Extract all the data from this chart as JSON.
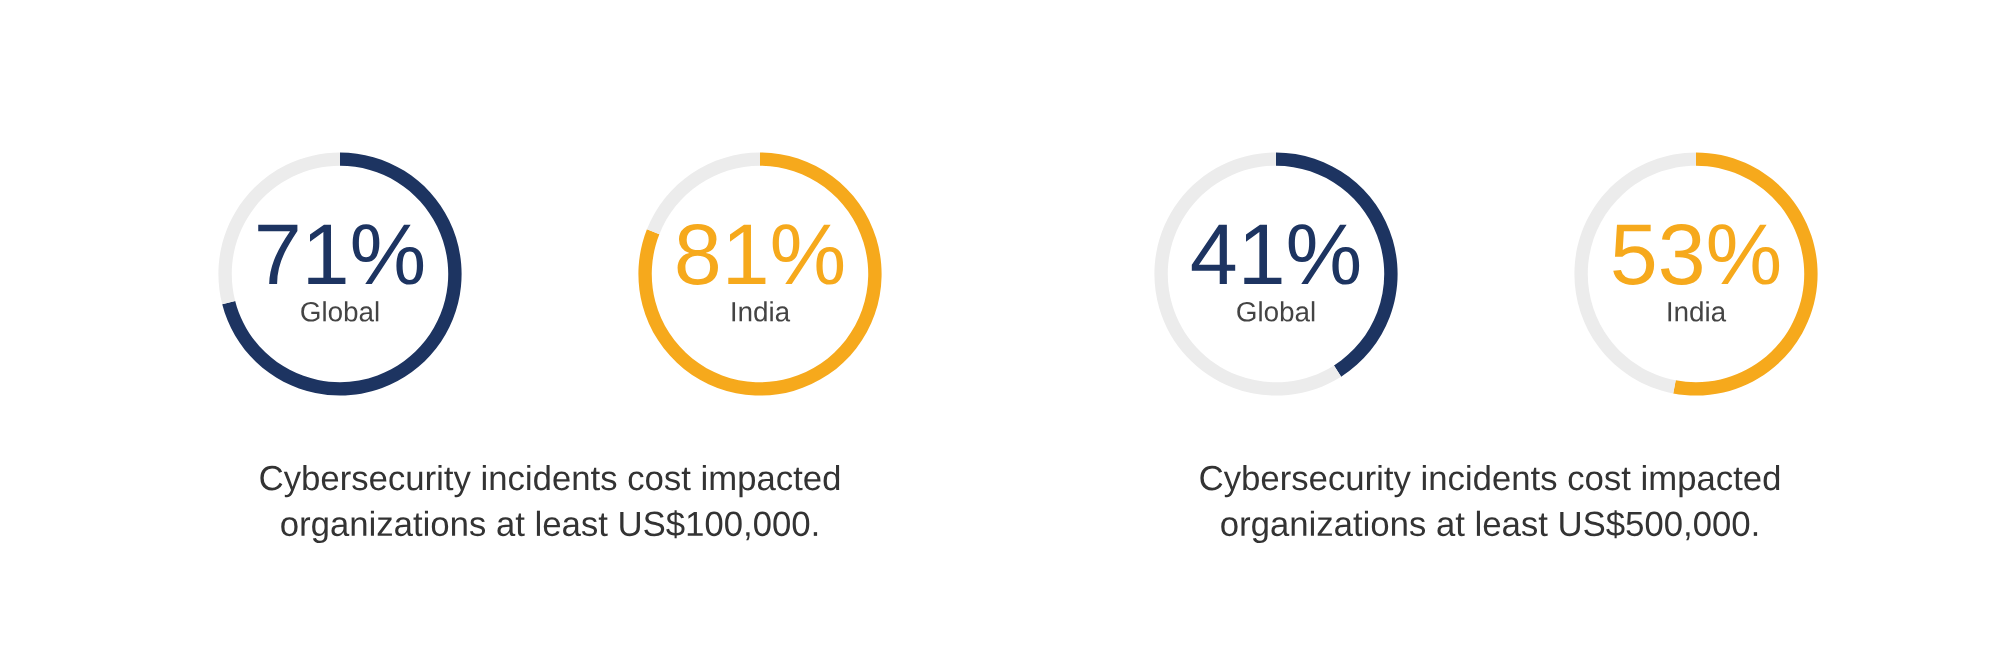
{
  "chart_data": [
    {
      "type": "donut",
      "categories": [
        "Global",
        null
      ],
      "values": [
        71,
        29
      ],
      "colors": [
        "#1d3461",
        "#ececec"
      ],
      "value_labels": [
        "71%",
        null
      ]
    },
    {
      "type": "donut",
      "categories": [
        "India",
        null
      ],
      "values": [
        81,
        19
      ],
      "colors": [
        "#f6a91c",
        "#ececec"
      ],
      "value_labels": [
        "81%",
        null
      ]
    },
    {
      "type": "other",
      "annotations": [
        "Cybersecurity incidents cost impacted\norganizations at least US$100,000."
      ]
    },
    {
      "type": "donut",
      "categories": [
        "Global",
        null
      ],
      "values": [
        41,
        59
      ],
      "colors": [
        "#1d3461",
        "#ececec"
      ],
      "value_labels": [
        "41%",
        null
      ]
    },
    {
      "type": "donut",
      "categories": [
        "India",
        null
      ],
      "values": [
        53,
        47
      ],
      "colors": [
        "#f6a91c",
        "#ececec"
      ],
      "value_labels": [
        "53%",
        null
      ]
    },
    {
      "type": "other",
      "annotations": [
        "Cybersecurity incidents cost impacted\norganizations at least US$500,000."
      ]
    }
  ]
}
